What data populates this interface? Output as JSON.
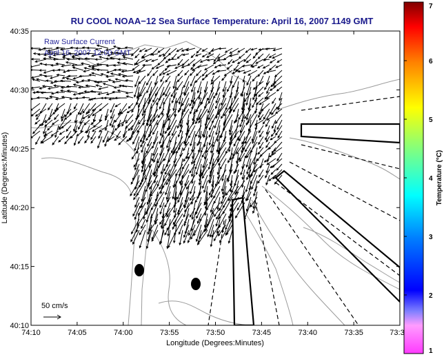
{
  "chart_data": {
    "type": "map-quiver",
    "title": "RU COOL  NOAA−12  Sea Surface Temperature:  April 16, 2007 1149 GMT",
    "xlabel": "Longitude (Degrees:Minutes)",
    "ylabel": "Latitude (Degrees:Minutes)",
    "x_ticks": [
      "74:10",
      "74:05",
      "74:00",
      "73:55",
      "73:50",
      "73:45",
      "73:40",
      "73:35",
      "73:3"
    ],
    "y_ticks": [
      "40:35",
      "40:30",
      "40:25",
      "40:20",
      "40:15",
      "40:10"
    ],
    "xlim_minutes_west": [
      70,
      30
    ],
    "ylim_minutes_north": [
      10,
      35
    ],
    "annotations": [
      "Raw Surface Current",
      "April 16, 2007 12:00 GMT"
    ],
    "scale_label": "50 cm/s",
    "colorbar": {
      "label": "Temperature (°C)",
      "ticks": [
        "7",
        "6",
        "5",
        "4",
        "3",
        "2",
        "1"
      ],
      "range": [
        1,
        7
      ],
      "colormap": "jet"
    },
    "colors": {
      "title": "#1a1a8c",
      "annotation": "#2a2a9a",
      "vectors": "#000000",
      "contours": "#9a9a9a"
    }
  }
}
